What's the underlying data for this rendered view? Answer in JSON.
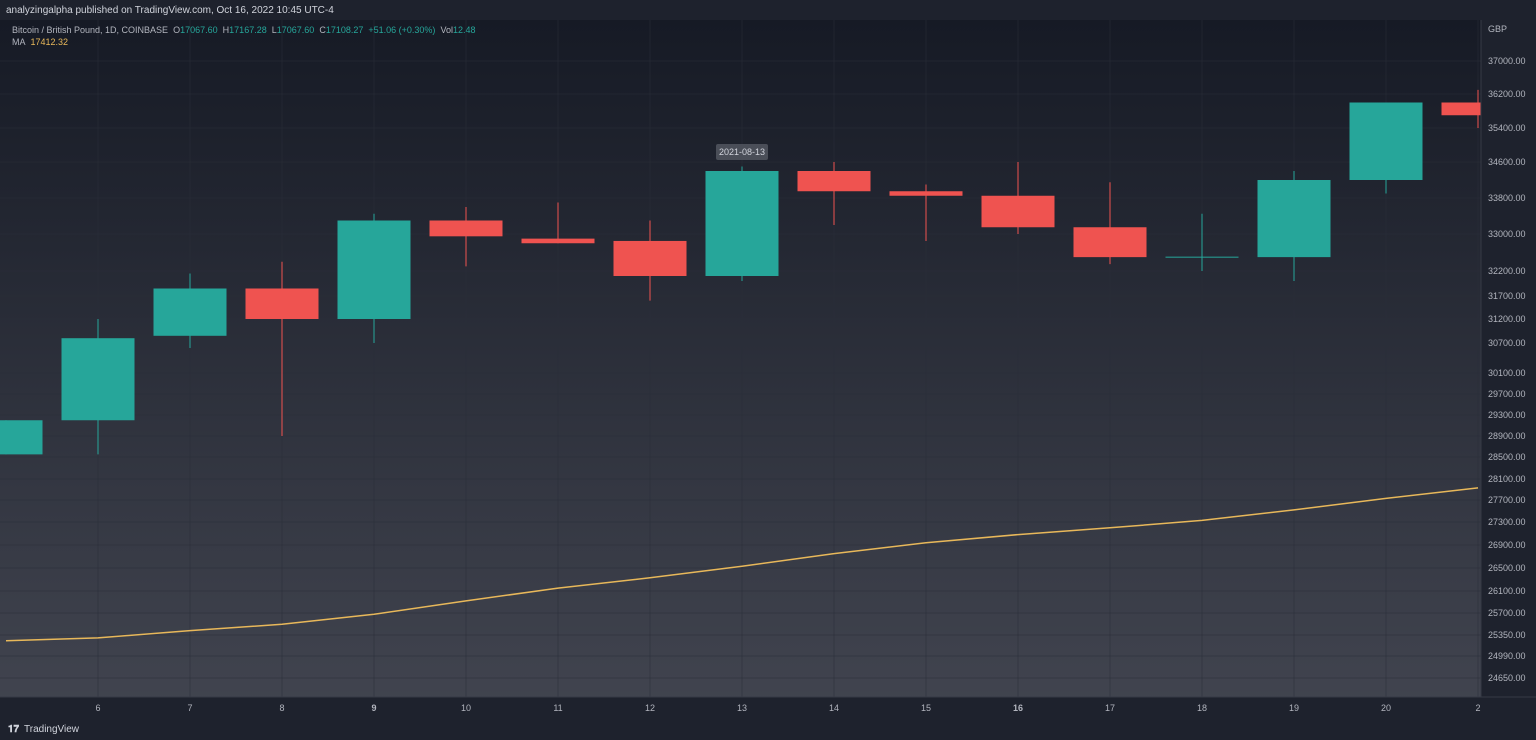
{
  "header": {
    "published": "analyzingalpha published on TradingView.com, Oct 16, 2022 10:45 UTC-4"
  },
  "legend": {
    "symbol": "Bitcoin / British Pound, 1D, COINBASE",
    "o_label": "O",
    "o_value": "17067.60",
    "h_label": "H",
    "h_value": "17167.28",
    "l_label": "L",
    "l_value": "17067.60",
    "c_label": "C",
    "c_value": "17108.27",
    "change": "+51.06 (+0.30%)",
    "vol_label": "Vol",
    "vol_value": "12.48",
    "ma_label": "MA",
    "ma_value": "17412.32"
  },
  "tooltip": {
    "date": "2021-08-13"
  },
  "footer": {
    "brand": "TradingView",
    "logo_glyph": "𝟏𝟕"
  },
  "colors": {
    "up": "#26a69a",
    "down": "#ef5350",
    "ma": "#e8b85a",
    "axis_text": "#b2b5be",
    "grid": "#2a2e39",
    "tooltip_bg": "#4a4e58"
  },
  "chart_data": {
    "type": "candlestick",
    "currency": "GBP",
    "y_ticks": [
      37000,
      36200,
      35400,
      34600,
      33800,
      33000,
      32200,
      31700,
      31200,
      30700,
      30100,
      29700,
      29300,
      28900,
      28500,
      28100,
      27700,
      27300,
      26900,
      26500,
      26100,
      25700,
      25350,
      24990,
      24650
    ],
    "y_tick_labels": [
      "37000.00",
      "36200.00",
      "35400.00",
      "34600.00",
      "33800.00",
      "33000.00",
      "32200.00",
      "31700.00",
      "31200.00",
      "30700.00",
      "30100.00",
      "29700.00",
      "29300.00",
      "28900.00",
      "28500.00",
      "28100.00",
      "27700.00",
      "27300.00",
      "26900.00",
      "26500.00",
      "26100.00",
      "25700.00",
      "25350.00",
      "24990.00",
      "24650.00"
    ],
    "x_labels": [
      "6",
      "7",
      "8",
      "9",
      "10",
      "11",
      "12",
      "13",
      "14",
      "15",
      "16",
      "17",
      "18",
      "19",
      "20",
      "2"
    ],
    "x_labels_bold": [
      "9",
      "16"
    ],
    "candles": [
      {
        "x": 5,
        "open": 28550,
        "close": 29200,
        "high": 29200,
        "low": 28550
      },
      {
        "x": 6,
        "open": 29200,
        "close": 30800,
        "high": 31200,
        "low": 28550
      },
      {
        "x": 7,
        "open": 30850,
        "close": 31850,
        "high": 32150,
        "low": 30600
      },
      {
        "x": 8,
        "open": 31850,
        "close": 31200,
        "high": 32400,
        "low": 28900
      },
      {
        "x": 9,
        "open": 31200,
        "close": 33300,
        "high": 33450,
        "low": 30700
      },
      {
        "x": 10,
        "open": 33300,
        "close": 32950,
        "high": 33600,
        "low": 32300
      },
      {
        "x": 11,
        "open": 32900,
        "close": 32800,
        "high": 33700,
        "low": 32800
      },
      {
        "x": 12,
        "open": 32850,
        "close": 32100,
        "high": 33300,
        "low": 31600
      },
      {
        "x": 13,
        "open": 32100,
        "close": 34400,
        "high": 34500,
        "low": 32000
      },
      {
        "x": 14,
        "open": 34400,
        "close": 33950,
        "high": 34600,
        "low": 33200
      },
      {
        "x": 15,
        "open": 33950,
        "close": 33850,
        "high": 34100,
        "low": 32850
      },
      {
        "x": 16,
        "open": 33850,
        "close": 33150,
        "high": 34600,
        "low": 33000
      },
      {
        "x": 17,
        "open": 33150,
        "close": 32500,
        "high": 34150,
        "low": 32350
      },
      {
        "x": 18,
        "open": 32500,
        "close": 32510,
        "high": 33450,
        "low": 32200
      },
      {
        "x": 19,
        "open": 32500,
        "close": 34200,
        "high": 34400,
        "low": 32000
      },
      {
        "x": 20,
        "open": 34200,
        "close": 36000,
        "high": 36000,
        "low": 33900
      },
      {
        "x": 21,
        "open": 36000,
        "close": 35700,
        "high": 36300,
        "low": 35400
      }
    ],
    "ma_series": {
      "name": "MA",
      "points": [
        {
          "x": 5,
          "y": 25250
        },
        {
          "x": 6,
          "y": 25300
        },
        {
          "x": 7,
          "y": 25420
        },
        {
          "x": 8,
          "y": 25520
        },
        {
          "x": 9,
          "y": 25680
        },
        {
          "x": 10,
          "y": 25920
        },
        {
          "x": 11,
          "y": 26150
        },
        {
          "x": 12,
          "y": 26330
        },
        {
          "x": 13,
          "y": 26530
        },
        {
          "x": 14,
          "y": 26750
        },
        {
          "x": 15,
          "y": 26940
        },
        {
          "x": 16,
          "y": 27080
        },
        {
          "x": 17,
          "y": 27200
        },
        {
          "x": 18,
          "y": 27330
        },
        {
          "x": 19,
          "y": 27520
        },
        {
          "x": 20,
          "y": 27730
        },
        {
          "x": 21,
          "y": 27930
        }
      ]
    }
  }
}
